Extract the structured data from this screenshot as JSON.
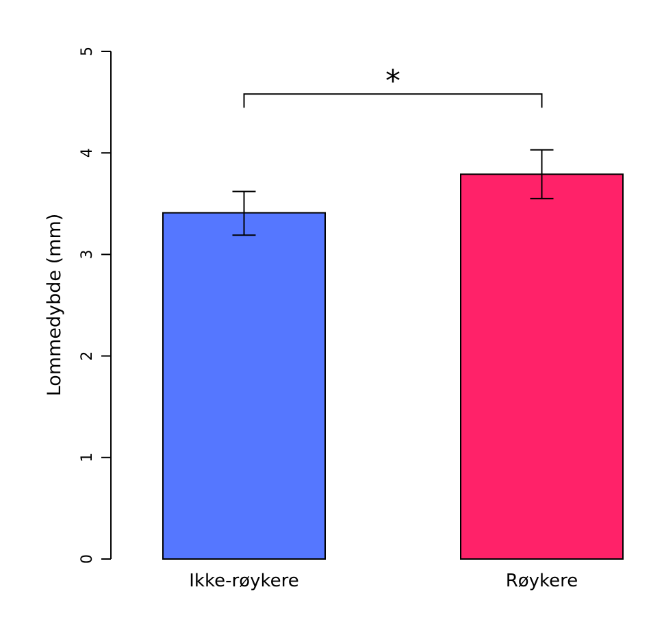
{
  "chart_data": {
    "type": "bar",
    "title": "",
    "xlabel": "",
    "ylabel": "Lommedybde (mm)",
    "ylim": [
      0,
      5
    ],
    "yticks": [
      "0",
      "1",
      "2",
      "3",
      "4",
      "5"
    ],
    "categories": [
      "Ikke-røykere",
      "Røykere"
    ],
    "values": [
      3.41,
      3.79
    ],
    "error_low": [
      3.19,
      3.55
    ],
    "error_high": [
      3.62,
      4.03
    ],
    "colors": [
      "#5577ff",
      "#ff2269"
    ],
    "significance": {
      "label": "*",
      "between": [
        0,
        1
      ],
      "y": 4.58
    },
    "grid": false,
    "legend": "none"
  }
}
